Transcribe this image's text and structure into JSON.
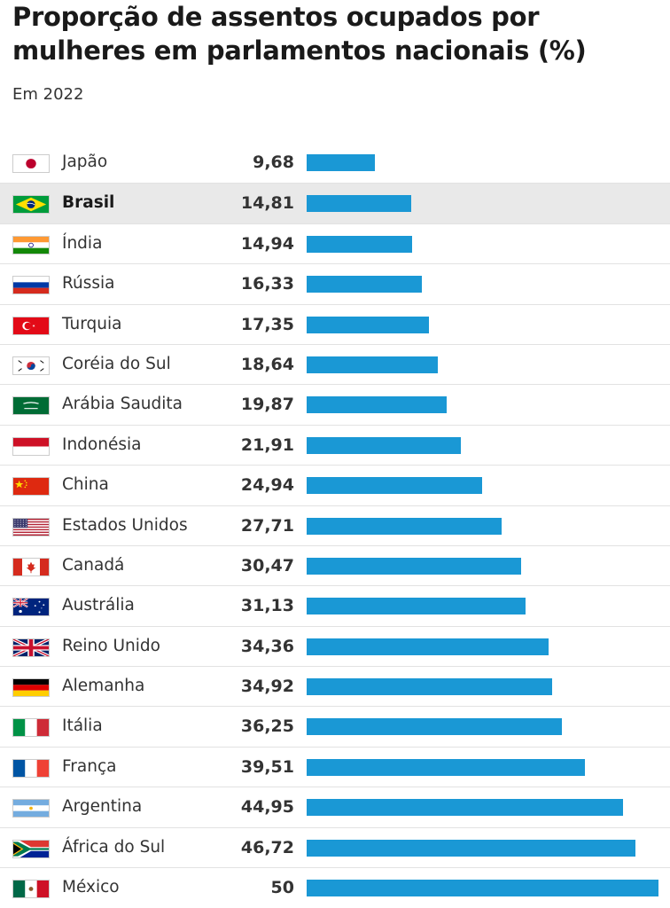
{
  "chart_data": {
    "type": "bar",
    "orientation": "horizontal",
    "title": "Proporção de assentos ocupados por mulheres em parlamentos nacionais (%)",
    "subtitle": "Em 2022",
    "xlim": [
      0,
      50
    ],
    "bar_color": "#1a98d5",
    "highlight_color": "#e9e9e9",
    "categories": [
      "Japão",
      "Brasil",
      "Índia",
      "Rússia",
      "Turquia",
      "Coréia do Sul",
      "Arábia Saudita",
      "Indonésia",
      "China",
      "Estados Unidos",
      "Canadá",
      "Austrália",
      "Reino Unido",
      "Alemanha",
      "Itália",
      "França",
      "Argentina",
      "África do Sul",
      "México"
    ],
    "values": [
      9.68,
      14.81,
      14.94,
      16.33,
      17.35,
      18.64,
      19.87,
      21.91,
      24.94,
      27.71,
      30.47,
      31.13,
      34.36,
      34.92,
      36.25,
      39.51,
      44.95,
      46.72,
      50
    ],
    "value_labels": [
      "9,68",
      "14,81",
      "14,94",
      "16,33",
      "17,35",
      "18,64",
      "19,87",
      "21,91",
      "24,94",
      "27,71",
      "30,47",
      "31,13",
      "34,36",
      "34,92",
      "36,25",
      "39,51",
      "44,95",
      "46,72",
      "50"
    ],
    "flag_icons": [
      "japan-flag-icon",
      "brazil-flag-icon",
      "india-flag-icon",
      "russia-flag-icon",
      "turkey-flag-icon",
      "south-korea-flag-icon",
      "saudi-arabia-flag-icon",
      "indonesia-flag-icon",
      "china-flag-icon",
      "usa-flag-icon",
      "canada-flag-icon",
      "australia-flag-icon",
      "uk-flag-icon",
      "germany-flag-icon",
      "italy-flag-icon",
      "france-flag-icon",
      "argentina-flag-icon",
      "south-africa-flag-icon",
      "mexico-flag-icon"
    ],
    "highlighted": [
      "Brasil"
    ]
  }
}
